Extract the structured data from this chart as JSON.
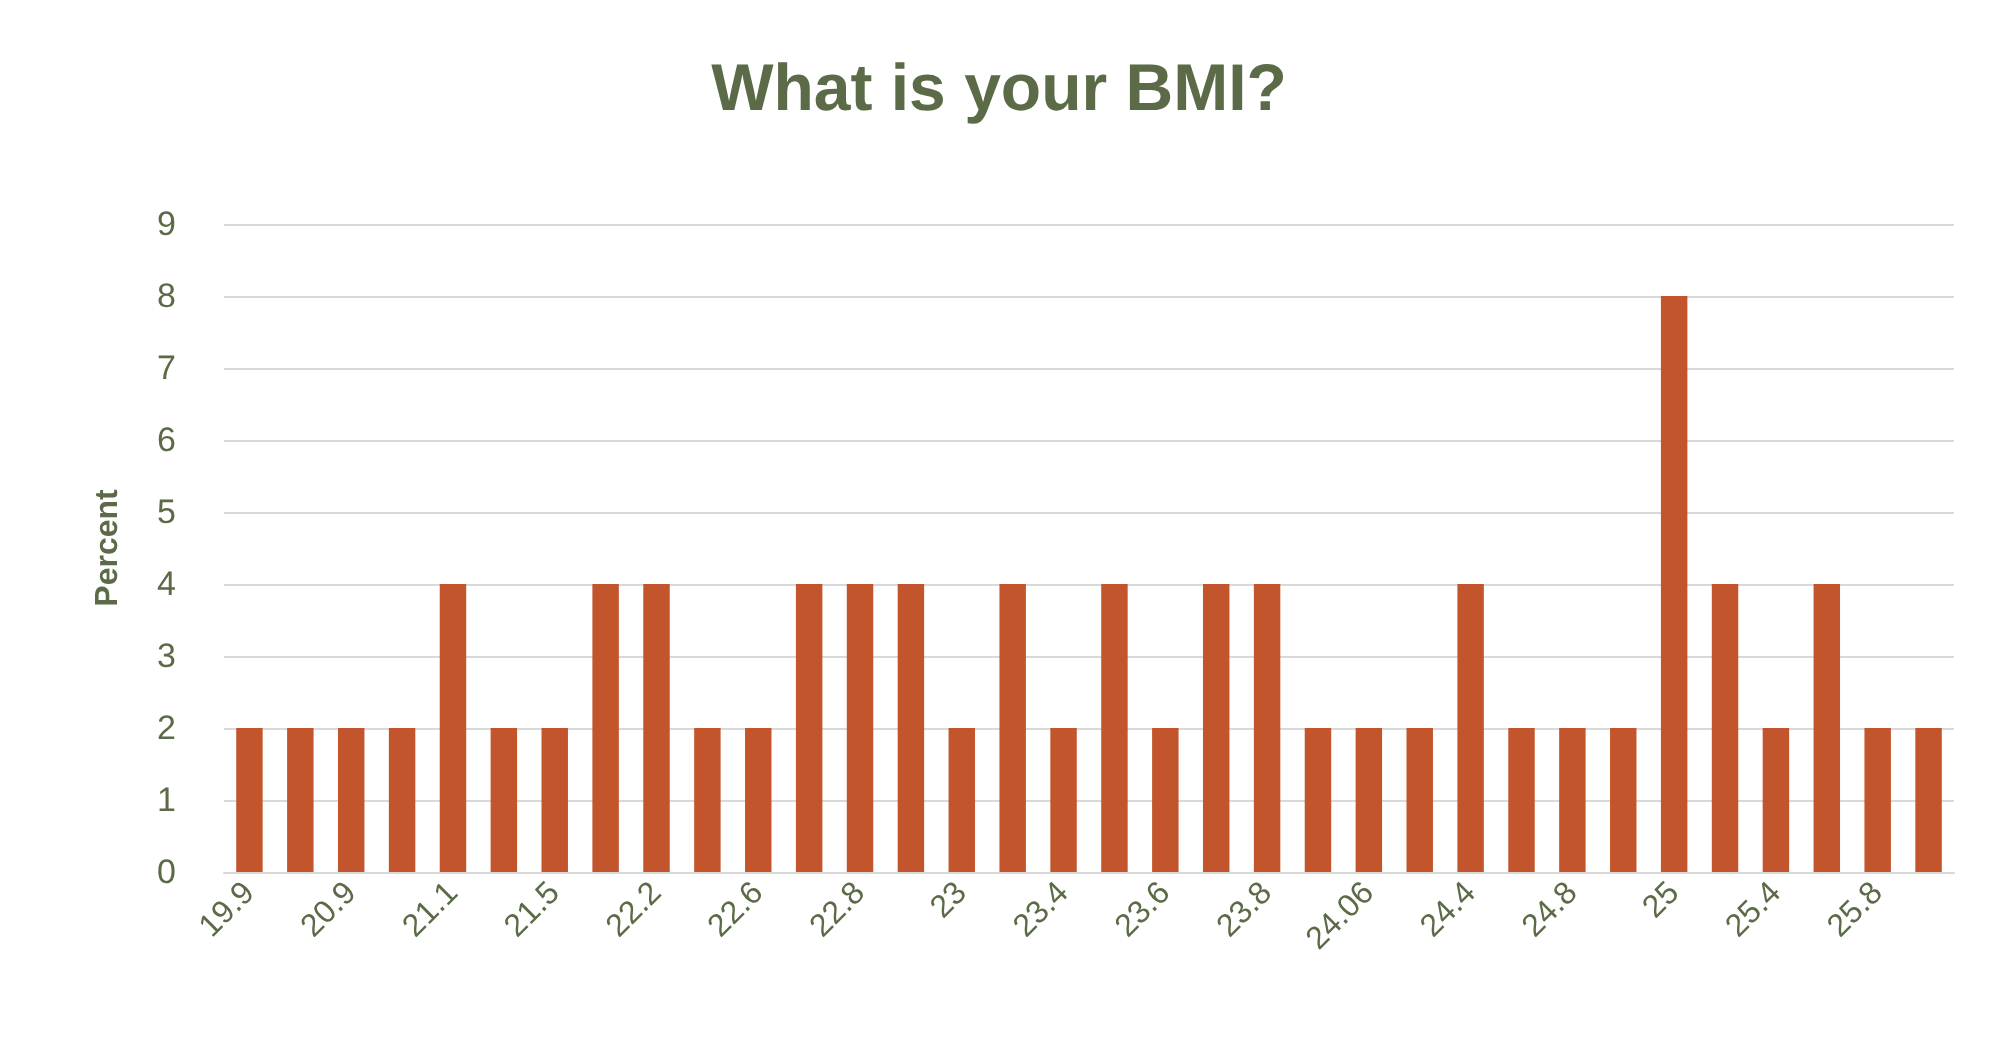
{
  "chart_data": {
    "type": "bar",
    "title": "What is your BMI?",
    "ylabel": "Percent",
    "categories": [
      "19.9",
      null,
      "20.9",
      null,
      "21.1",
      null,
      "21.5",
      null,
      "22.2",
      null,
      "22.6",
      null,
      "22.8",
      null,
      "23",
      null,
      "23.4",
      null,
      "23.6",
      null,
      "23.8",
      null,
      "24.06",
      null,
      "24.4",
      null,
      "24.8",
      null,
      "25",
      null,
      "25.4",
      null,
      "25.8",
      null
    ],
    "values": [
      2,
      2,
      2,
      2,
      4,
      2,
      2,
      4,
      4,
      2,
      2,
      4,
      4,
      4,
      2,
      4,
      2,
      4,
      2,
      4,
      4,
      2,
      2,
      2,
      4,
      2,
      2,
      2,
      8,
      4,
      2,
      4,
      2,
      2
    ],
    "color": "#c2552b",
    "ylim": [
      0,
      9
    ],
    "yticks": [
      0,
      1,
      2,
      3,
      4,
      5,
      6,
      7,
      8,
      9
    ],
    "grid": "y"
  }
}
